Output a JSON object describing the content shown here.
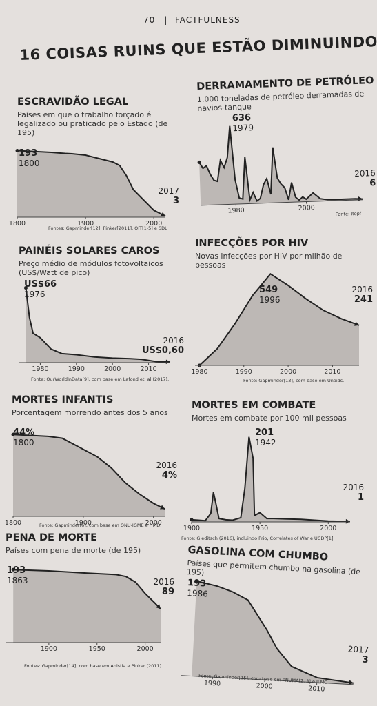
{
  "header": {
    "page_number": "70",
    "separator": "|",
    "book_title": "FACTFULNESS"
  },
  "main_title": "16 COISAS RUINS QUE ESTÃO DIMINUINDO",
  "chart_data": [
    {
      "id": "escravidao",
      "type": "area",
      "title": "ESCRAVIDÃO LEGAL",
      "subtitle": "Países em que o trabalho forçado é legalizado ou praticado pelo Estado (de 195)",
      "x": [
        1800,
        1830,
        1850,
        1870,
        1880,
        1900,
        1920,
        1940,
        1950,
        1960,
        1970,
        1980,
        1990,
        2000,
        2017
      ],
      "y": [
        193,
        190,
        188,
        185,
        184,
        180,
        170,
        160,
        150,
        120,
        80,
        60,
        40,
        20,
        3
      ],
      "xticks": [
        1800,
        1900,
        2000
      ],
      "xlim": [
        1800,
        2017
      ],
      "ylim": [
        0,
        210
      ],
      "start_label": {
        "value": "193",
        "year": "1800"
      },
      "end_label": {
        "value": "3",
        "year": "2017"
      },
      "source": "Fontes: Gapminder[12], Pinker[2011], OIT[1-5] e SDL"
    },
    {
      "id": "petroleo",
      "type": "area",
      "title": "DERRAMAMENTO DE PETRÓLEO",
      "subtitle": "1.000 toneladas de petróleo derramadas de navios-tanque",
      "x": [
        1970,
        1971,
        1972,
        1973,
        1974,
        1975,
        1976,
        1977,
        1978,
        1979,
        1980,
        1981,
        1982,
        1983,
        1984,
        1985,
        1986,
        1987,
        1988,
        1989,
        1990,
        1991,
        1992,
        1993,
        1994,
        1995,
        1996,
        1997,
        1998,
        1999,
        2000,
        2002,
        2004,
        2006,
        2008,
        2010,
        2012,
        2014,
        2016
      ],
      "y": [
        350,
        300,
        320,
        250,
        200,
        190,
        360,
        300,
        380,
        636,
        200,
        50,
        40,
        380,
        30,
        90,
        20,
        40,
        150,
        200,
        70,
        450,
        200,
        150,
        120,
        20,
        160,
        40,
        15,
        40,
        20,
        70,
        20,
        10,
        10,
        10,
        10,
        10,
        6
      ],
      "xticks": [
        1980,
        2000
      ],
      "xlim": [
        1970,
        2016
      ],
      "ylim": [
        0,
        700
      ],
      "start_label": {
        "value": "636",
        "year": "1979"
      },
      "end_label": {
        "value": "6",
        "year": "2016"
      },
      "source": "Fonte: Itopf"
    },
    {
      "id": "solar",
      "type": "area",
      "title": "PAINÉIS SOLARES CAROS",
      "subtitle": "Preço médio de módulos fotovoltaicos (US$/Watt de pico)",
      "x": [
        1976,
        1977,
        1978,
        1980,
        1983,
        1986,
        1990,
        1995,
        2000,
        2005,
        2008,
        2010,
        2012,
        2016
      ],
      "y": [
        66,
        40,
        26,
        22,
        12,
        8,
        7,
        5,
        4,
        3.5,
        3,
        2,
        1,
        0.6
      ],
      "xticks": [
        1980,
        1990,
        2000,
        2010
      ],
      "xlim": [
        1974,
        2016
      ],
      "ylim": [
        0,
        70
      ],
      "start_label": {
        "value": "US$66",
        "year": "1976"
      },
      "end_label": {
        "value": "US$0,60",
        "year": "2016"
      },
      "source": "Fonte: OurWorldInData[9], com base em Lafond et. al (2017)."
    },
    {
      "id": "hiv",
      "type": "area",
      "title": "INFECÇÕES POR HIV",
      "subtitle": "Novas infecções por HIV por milhão de pessoas",
      "x": [
        1980,
        1984,
        1988,
        1992,
        1996,
        2000,
        2004,
        2008,
        2012,
        2016
      ],
      "y": [
        0,
        100,
        250,
        420,
        549,
        480,
        400,
        330,
        280,
        241
      ],
      "xticks": [
        1980,
        1990,
        2000,
        2010
      ],
      "xlim": [
        1979,
        2016
      ],
      "ylim": [
        0,
        600
      ],
      "start_label": {
        "value": "549",
        "year": "1996"
      },
      "end_label": {
        "value": "241",
        "year": "2016"
      },
      "source": "Fonte: Gapminder[13], com base em Unaids."
    },
    {
      "id": "mortes_infantis",
      "type": "area",
      "title": "MORTES INFANTIS",
      "subtitle": "Porcentagem morrendo antes dos 5 anos",
      "x": [
        1800,
        1850,
        1870,
        1900,
        1920,
        1940,
        1960,
        1980,
        2000,
        2016
      ],
      "y": [
        44,
        43,
        42,
        36,
        32,
        26,
        18,
        12,
        7,
        4
      ],
      "xticks": [
        1800,
        1900,
        2000
      ],
      "xlim": [
        1800,
        2016
      ],
      "ylim": [
        0,
        50
      ],
      "start_label": {
        "value": "44%",
        "year": "1800"
      },
      "end_label": {
        "value": "4%",
        "year": "2016"
      },
      "source": "Fonte: Gapminder[6], com base em ONU-IGME e HMD."
    },
    {
      "id": "combate",
      "type": "area",
      "title": "MORTES EM COMBATE",
      "subtitle": "Mortes em combate por 100 mil pessoas",
      "x": [
        1900,
        1905,
        1910,
        1914,
        1916,
        1918,
        1920,
        1925,
        1930,
        1936,
        1939,
        1942,
        1945,
        1946,
        1950,
        1955,
        1960,
        1970,
        1980,
        1990,
        2000,
        2016
      ],
      "y": [
        5,
        4,
        3,
        20,
        70,
        40,
        8,
        5,
        4,
        10,
        80,
        201,
        150,
        15,
        22,
        8,
        8,
        7,
        6,
        4,
        2,
        1
      ],
      "xticks": [
        1900,
        1950,
        2000
      ],
      "xlim": [
        1900,
        2016
      ],
      "ylim": [
        0,
        220
      ],
      "start_label": {
        "value": "201",
        "year": "1942"
      },
      "end_label": {
        "value": "1",
        "year": "2016"
      },
      "source": "Fonte: Gleditsch (2016), incluindo Prio, Correlates of War e UCDP[1]"
    },
    {
      "id": "pena_morte",
      "type": "area",
      "title": "PENA DE MORTE",
      "subtitle": "Países com pena de morte (de 195)",
      "x": [
        1863,
        1900,
        1940,
        1970,
        1980,
        1990,
        2000,
        2010,
        2016
      ],
      "y": [
        193,
        190,
        184,
        180,
        175,
        160,
        130,
        105,
        89
      ],
      "xticks": [
        1900,
        1950,
        2000
      ],
      "xlim": [
        1855,
        2016
      ],
      "ylim": [
        0,
        210
      ],
      "start_label": {
        "value": "193",
        "year": "1863"
      },
      "end_label": {
        "value": "89",
        "year": "2016"
      },
      "source": "Fontes: Gapminder[14], com base em Anistia e Pinker (2011)."
    },
    {
      "id": "gasolina",
      "type": "area",
      "title": "GASOLINA COM CHUMBO",
      "subtitle": "Países que permitem chumbo na gasolina (de 195)",
      "x": [
        1986,
        1990,
        1993,
        1996,
        1998,
        2000,
        2002,
        2005,
        2010,
        2017
      ],
      "y": [
        193,
        185,
        175,
        160,
        130,
        100,
        65,
        30,
        10,
        3
      ],
      "xticks": [
        1990,
        2000,
        2010
      ],
      "xlim": [
        1984,
        2017
      ],
      "ylim": [
        0,
        210
      ],
      "start_label": {
        "value": "193",
        "year": "1986"
      },
      "end_label": {
        "value": "3",
        "year": "2017"
      },
      "source": "Fonte: Gapminder[15], com base em PNUMA[2, 3] e ILMC"
    }
  ]
}
